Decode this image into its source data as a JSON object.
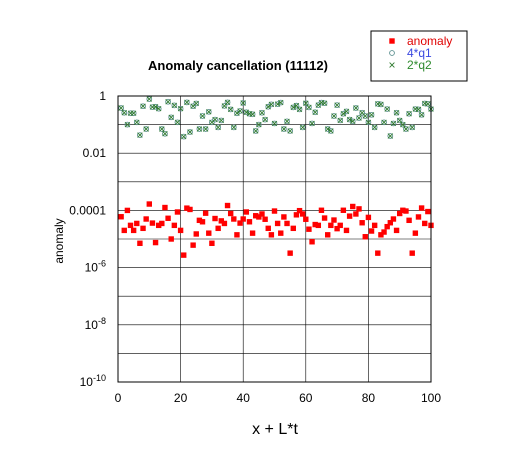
{
  "chart_data": {
    "type": "scatter",
    "title": "Anomaly cancellation (11112)",
    "xlabel": "x + L*t",
    "ylabel": "anomaly",
    "xlim": [
      0,
      100
    ],
    "ylim": [
      1e-10,
      1
    ],
    "yscale": "log",
    "grid": true,
    "legend_placement": "top-right",
    "xticks": [
      "0",
      "20",
      "40",
      "60",
      "80",
      "100"
    ],
    "yticks": [
      {
        "base": "1",
        "exp": ""
      },
      {
        "base": "0.01",
        "exp": ""
      },
      {
        "base": "0.0001",
        "exp": ""
      },
      {
        "base": "10",
        "exp": "-6"
      },
      {
        "base": "10",
        "exp": "-8"
      },
      {
        "base": "10",
        "exp": "-10"
      }
    ],
    "series": [
      {
        "name": "anomaly",
        "marker": "filled-square",
        "color": "#ff0000",
        "x": [
          1,
          2,
          3,
          4,
          5,
          6,
          7,
          8,
          9,
          10,
          11,
          12,
          13,
          14,
          15,
          16,
          17,
          18,
          19,
          20,
          21,
          22,
          23,
          24,
          25,
          26,
          27,
          28,
          29,
          30,
          31,
          32,
          33,
          34,
          35,
          36,
          37,
          38,
          39,
          40,
          41,
          42,
          43,
          44,
          45,
          46,
          47,
          48,
          49,
          50,
          51,
          52,
          53,
          54,
          55,
          56,
          57,
          58,
          59,
          60,
          61,
          62,
          63,
          64,
          65,
          66,
          67,
          68,
          69,
          70,
          71,
          72,
          73,
          74,
          75,
          76,
          77,
          78,
          79,
          80,
          81,
          82,
          83,
          84,
          85,
          86,
          87,
          88,
          89,
          90,
          91,
          92,
          93,
          94,
          95,
          96,
          97,
          98,
          99,
          100
        ],
        "y": [
          6e-05,
          2e-05,
          0.0001,
          3e-05,
          2e-05,
          3.5e-05,
          7.08e-06,
          2.36e-05,
          5e-05,
          0.000167,
          3.6e-05,
          7.5e-06,
          3e-05,
          3.5e-05,
          0.000126,
          5.3e-05,
          1e-05,
          3e-05,
          8.8e-05,
          2e-05,
          2.73e-06,
          0.00012,
          0.000108,
          6.1e-06,
          1.5e-05,
          4.5e-05,
          4e-05,
          8e-05,
          1.6e-05,
          7.08e-06,
          5.2e-05,
          2.36e-05,
          4.3e-05,
          3.5e-05,
          0.000148,
          7.8e-05,
          5e-05,
          1.4e-05,
          3.6e-05,
          5e-05,
          8.8e-05,
          4e-05,
          1.6e-05,
          6.5e-05,
          5.9e-05,
          7.5e-05,
          4.9e-05,
          2.36e-05,
          1.4e-05,
          9.5e-05,
          3.5e-05,
          1.6e-05,
          5.9e-05,
          3.5e-05,
          3.2e-06,
          2.36e-05,
          7e-05,
          9.8e-05,
          7.5e-05,
          4.9e-05,
          2.2e-05,
          8e-06,
          3.2e-05,
          3e-05,
          0.000101,
          5.4e-05,
          1.4e-05,
          3e-05,
          4.6e-05,
          2.3e-05,
          3e-05,
          0.000101,
          2e-05,
          6.3e-05,
          0.000137,
          7.5e-05,
          0.000113,
          3.7e-05,
          1.2e-05,
          5.7e-05,
          1.9e-05,
          3e-05,
          3.2e-06,
          1.4e-05,
          1.75e-05,
          2.7e-05,
          3.7e-05,
          5e-05,
          2e-05,
          7.8e-05,
          0.000101,
          9.5e-05,
          4.5e-05,
          3.2e-06,
          1.6e-05,
          5.9e-05,
          0.000121,
          3.5e-05,
          9.1e-05,
          3e-05
        ]
      },
      {
        "name": "4*q1",
        "marker": "open-circle",
        "color": "#5b8f8f",
        "x": [
          1,
          2,
          3,
          4,
          5,
          6,
          7,
          8,
          9,
          10,
          11,
          12,
          13,
          14,
          15,
          16,
          17,
          18,
          19,
          20,
          21,
          22,
          23,
          24,
          25,
          26,
          27,
          28,
          29,
          30,
          31,
          32,
          33,
          34,
          35,
          36,
          37,
          38,
          39,
          40,
          41,
          42,
          43,
          44,
          45,
          46,
          47,
          48,
          49,
          50,
          51,
          52,
          53,
          54,
          55,
          56,
          57,
          58,
          59,
          60,
          61,
          62,
          63,
          64,
          65,
          66,
          67,
          68,
          69,
          70,
          71,
          72,
          73,
          74,
          75,
          76,
          77,
          78,
          79,
          80,
          81,
          82,
          83,
          84,
          85,
          86,
          87,
          88,
          89,
          90,
          91,
          92,
          93,
          94,
          95,
          96,
          97,
          98,
          99,
          100
        ],
        "y": [
          0.38,
          0.26,
          0.1,
          0.25,
          0.25,
          0.12,
          0.043,
          0.44,
          0.07,
          0.78,
          0.41,
          0.42,
          0.36,
          0.07,
          0.048,
          0.63,
          0.18,
          0.47,
          0.12,
          0.36,
          0.038,
          0.6,
          0.055,
          0.44,
          0.55,
          0.07,
          0.2,
          0.07,
          0.28,
          0.12,
          0.15,
          0.08,
          0.14,
          0.45,
          0.6,
          0.34,
          0.08,
          0.25,
          0.3,
          0.57,
          0.27,
          0.24,
          0.23,
          0.06,
          0.1,
          0.26,
          0.15,
          0.42,
          0.51,
          0.11,
          0.52,
          0.59,
          0.07,
          0.13,
          0.06,
          0.4,
          0.46,
          0.34,
          0.08,
          0.56,
          0.4,
          0.11,
          0.27,
          0.48,
          0.59,
          0.56,
          0.07,
          0.06,
          0.2,
          0.48,
          0.14,
          0.24,
          0.29,
          0.15,
          0.13,
          0.38,
          0.17,
          0.26,
          0.2,
          0.12,
          0.22,
          0.08,
          0.53,
          0.51,
          0.12,
          0.35,
          0.04,
          0.11,
          0.26,
          0.14,
          0.1,
          0.07,
          0.24,
          0.08,
          0.35,
          0.34,
          0.22,
          0.55,
          0.53,
          0.35
        ]
      },
      {
        "name": "2*q2",
        "marker": "cross",
        "color": "#2e7a2e",
        "x": [
          1,
          2,
          3,
          4,
          5,
          6,
          7,
          8,
          9,
          10,
          11,
          12,
          13,
          14,
          15,
          16,
          17,
          18,
          19,
          20,
          21,
          22,
          23,
          24,
          25,
          26,
          27,
          28,
          29,
          30,
          31,
          32,
          33,
          34,
          35,
          36,
          37,
          38,
          39,
          40,
          41,
          42,
          43,
          44,
          45,
          46,
          47,
          48,
          49,
          50,
          51,
          52,
          53,
          54,
          55,
          56,
          57,
          58,
          59,
          60,
          61,
          62,
          63,
          64,
          65,
          66,
          67,
          68,
          69,
          70,
          71,
          72,
          73,
          74,
          75,
          76,
          77,
          78,
          79,
          80,
          81,
          82,
          83,
          84,
          85,
          86,
          87,
          88,
          89,
          90,
          91,
          92,
          93,
          94,
          95,
          96,
          97,
          98,
          99,
          100
        ],
        "y": [
          0.38,
          0.26,
          0.1,
          0.25,
          0.25,
          0.12,
          0.043,
          0.44,
          0.07,
          0.78,
          0.41,
          0.42,
          0.36,
          0.07,
          0.048,
          0.63,
          0.18,
          0.47,
          0.12,
          0.36,
          0.038,
          0.6,
          0.055,
          0.44,
          0.55,
          0.07,
          0.2,
          0.07,
          0.28,
          0.12,
          0.15,
          0.08,
          0.14,
          0.45,
          0.6,
          0.34,
          0.08,
          0.25,
          0.3,
          0.57,
          0.27,
          0.24,
          0.23,
          0.06,
          0.1,
          0.26,
          0.15,
          0.42,
          0.51,
          0.11,
          0.52,
          0.59,
          0.07,
          0.13,
          0.06,
          0.4,
          0.46,
          0.34,
          0.08,
          0.56,
          0.4,
          0.11,
          0.27,
          0.48,
          0.59,
          0.56,
          0.07,
          0.06,
          0.2,
          0.48,
          0.14,
          0.24,
          0.29,
          0.15,
          0.13,
          0.38,
          0.17,
          0.26,
          0.2,
          0.12,
          0.22,
          0.08,
          0.53,
          0.51,
          0.12,
          0.35,
          0.04,
          0.11,
          0.26,
          0.14,
          0.1,
          0.07,
          0.24,
          0.08,
          0.35,
          0.34,
          0.22,
          0.55,
          0.53,
          0.35
        ]
      }
    ]
  }
}
